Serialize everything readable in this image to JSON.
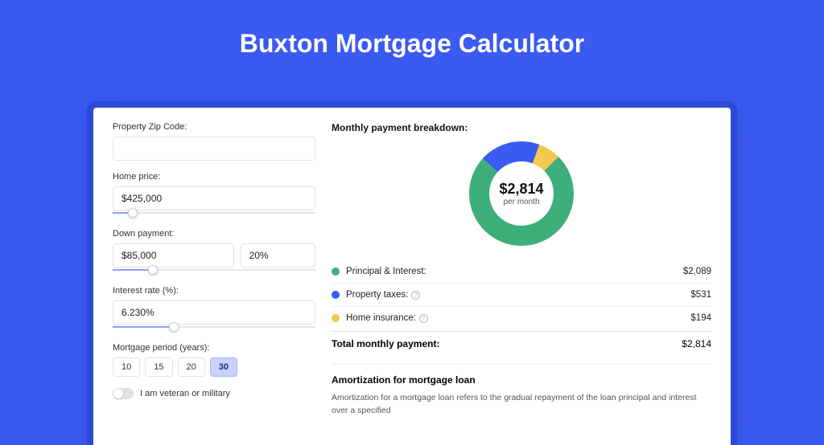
{
  "colors": {
    "page_bg": "#3a5af2",
    "card_border": "#2d4ad6",
    "principal": "#3eae7a",
    "taxes": "#3a5af2",
    "insurance": "#f2c94c"
  },
  "title": "Buxton Mortgage Calculator",
  "form": {
    "zip_label": "Property Zip Code:",
    "zip_value": "",
    "home_price_label": "Home price:",
    "home_price_value": "$425,000",
    "home_price_slider_pct": 10,
    "down_label": "Down payment:",
    "down_value": "$85,000",
    "down_pct": "20%",
    "down_slider_pct": 20,
    "rate_label": "Interest rate (%):",
    "rate_value": "6.230%",
    "rate_slider_pct": 30,
    "period_label": "Mortgage period (years):",
    "periods": [
      "10",
      "15",
      "20",
      "30"
    ],
    "period_active_index": 3,
    "veteran_label": "I am veteran or military",
    "veteran_on": false
  },
  "breakdown": {
    "heading": "Monthly payment breakdown:",
    "center_amount": "$2,814",
    "center_sub": "per month",
    "donut": {
      "segments": [
        {
          "key": "principal",
          "value": 2089,
          "color": "#3eae7a"
        },
        {
          "key": "taxes",
          "value": 531,
          "color": "#3a5af2"
        },
        {
          "key": "insurance",
          "value": 194,
          "color": "#f2c94c"
        }
      ],
      "start_angle_deg": -45,
      "inner_r": 40,
      "outer_r": 65
    },
    "lines": [
      {
        "label": "Principal & Interest:",
        "value": "$2,089",
        "color": "#3eae7a",
        "info": false
      },
      {
        "label": "Property taxes:",
        "value": "$531",
        "color": "#3a5af2",
        "info": true
      },
      {
        "label": "Home insurance:",
        "value": "$194",
        "color": "#f2c94c",
        "info": true
      }
    ],
    "total_label": "Total monthly payment:",
    "total_value": "$2,814"
  },
  "amort": {
    "heading": "Amortization for mortgage loan",
    "body": "Amortization for a mortgage loan refers to the gradual repayment of the loan principal and interest over a specified"
  }
}
